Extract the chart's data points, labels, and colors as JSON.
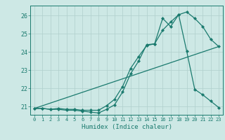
{
  "xlabel": "Humidex (Indice chaleur)",
  "xlim": [
    -0.5,
    23.5
  ],
  "ylim": [
    20.55,
    26.55
  ],
  "xticks": [
    0,
    1,
    2,
    3,
    4,
    5,
    6,
    7,
    8,
    9,
    10,
    11,
    12,
    13,
    14,
    15,
    16,
    17,
    18,
    19,
    20,
    21,
    22,
    23
  ],
  "yticks": [
    21,
    22,
    23,
    24,
    25,
    26
  ],
  "line_color": "#1a7a6e",
  "bg_color": "#cde8e5",
  "grid_color": "#b0cfcc",
  "line1_x": [
    0,
    1,
    2,
    3,
    4,
    5,
    6,
    7,
    8,
    9,
    10,
    11,
    12,
    13,
    14,
    15,
    16,
    17,
    18,
    19,
    20,
    21,
    22,
    23
  ],
  "line1_y": [
    20.9,
    20.9,
    20.85,
    20.85,
    20.8,
    20.8,
    20.75,
    20.7,
    20.65,
    20.85,
    21.1,
    21.8,
    22.8,
    23.5,
    24.4,
    24.45,
    25.85,
    25.4,
    26.05,
    26.2,
    25.85,
    25.4,
    24.7,
    24.3
  ],
  "line2_x": [
    0,
    1,
    2,
    3,
    4,
    5,
    6,
    7,
    8,
    9,
    10,
    11,
    12,
    13,
    14,
    15,
    16,
    17,
    18,
    19,
    20,
    21,
    22,
    23
  ],
  "line2_y": [
    20.9,
    20.9,
    20.85,
    20.9,
    20.85,
    20.85,
    20.8,
    20.8,
    20.8,
    21.05,
    21.4,
    22.1,
    23.1,
    23.75,
    24.35,
    24.45,
    25.2,
    25.65,
    26.05,
    24.05,
    21.95,
    21.65,
    21.3,
    20.95
  ],
  "line3_x": [
    0,
    23
  ],
  "line3_y": [
    20.9,
    24.3
  ],
  "marker_size": 2.2,
  "linewidth": 0.9
}
